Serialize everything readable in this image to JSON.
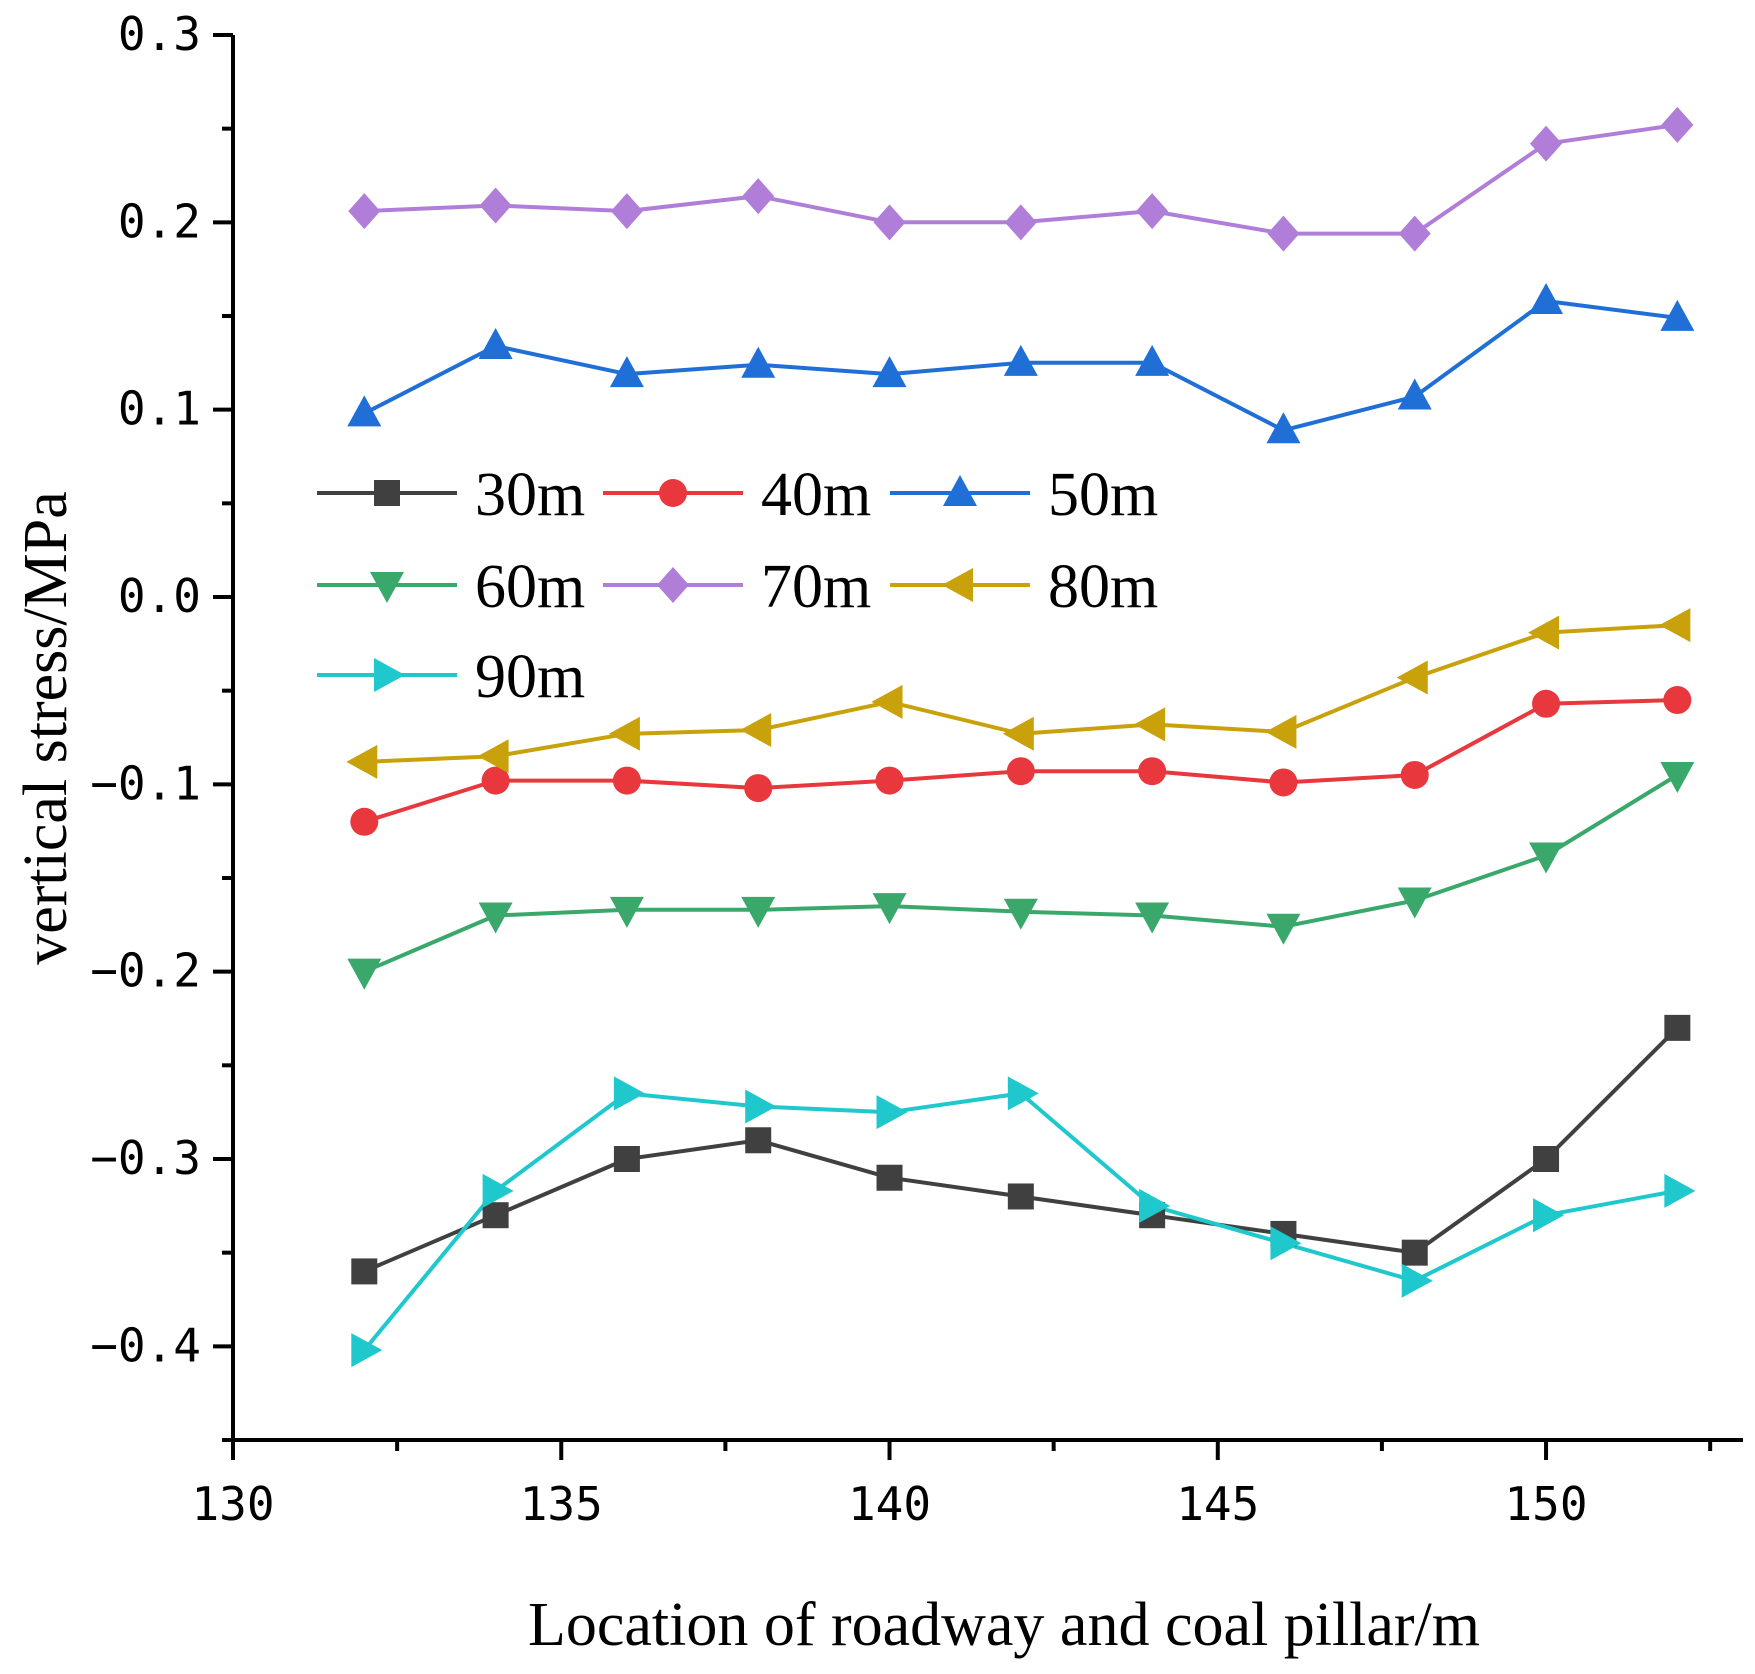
{
  "chart_data": {
    "type": "line",
    "title": "",
    "xlabel": "Location of roadway and coal pillar/m",
    "ylabel": "vertical stress/MPa",
    "xlim": [
      130,
      153
    ],
    "ylim": [
      -0.45,
      0.3
    ],
    "x_ticks": [
      "130",
      "135",
      "140",
      "145",
      "150"
    ],
    "y_ticks": [
      "0.3",
      "0.2",
      "0.1",
      "0.0",
      "−0.1",
      "−0.2",
      "−0.3",
      "−0.4"
    ],
    "legend_position": "upper-left",
    "x": [
      132,
      134,
      136,
      138,
      140,
      142,
      144,
      146,
      148,
      150,
      152
    ],
    "series": [
      {
        "name": "30m",
        "color": "#404040",
        "marker": "square",
        "values": [
          -0.36,
          -0.33,
          -0.3,
          -0.29,
          -0.31,
          -0.32,
          -0.33,
          -0.34,
          -0.35,
          -0.3,
          -0.23
        ]
      },
      {
        "name": "40m",
        "color": "#e8383d",
        "marker": "circle",
        "values": [
          -0.12,
          -0.098,
          -0.098,
          -0.102,
          -0.098,
          -0.093,
          -0.093,
          -0.099,
          -0.095,
          -0.057,
          -0.055
        ]
      },
      {
        "name": "50m",
        "color": "#1f6fd6",
        "marker": "triangle-up",
        "values": [
          0.098,
          0.134,
          0.119,
          0.124,
          0.119,
          0.125,
          0.125,
          0.089,
          0.107,
          0.158,
          0.149
        ]
      },
      {
        "name": "60m",
        "color": "#3aa86b",
        "marker": "triangle-down",
        "values": [
          -0.2,
          -0.17,
          -0.167,
          -0.167,
          -0.165,
          -0.168,
          -0.17,
          -0.176,
          -0.162,
          -0.138,
          -0.095
        ]
      },
      {
        "name": "70m",
        "color": "#b07ed8",
        "marker": "diamond",
        "values": [
          0.206,
          0.209,
          0.206,
          0.214,
          0.2,
          0.2,
          0.206,
          0.194,
          0.194,
          0.242,
          0.252
        ]
      },
      {
        "name": "80m",
        "color": "#c9a10a",
        "marker": "triangle-left",
        "values": [
          -0.088,
          -0.085,
          -0.073,
          -0.071,
          -0.056,
          -0.073,
          -0.068,
          -0.072,
          -0.043,
          -0.019,
          -0.015
        ]
      },
      {
        "name": "90m",
        "color": "#1ec8cc",
        "marker": "triangle-right",
        "values": [
          -0.402,
          -0.317,
          -0.265,
          -0.272,
          -0.275,
          -0.265,
          -0.325,
          -0.345,
          -0.365,
          -0.33,
          -0.317
        ]
      }
    ]
  }
}
